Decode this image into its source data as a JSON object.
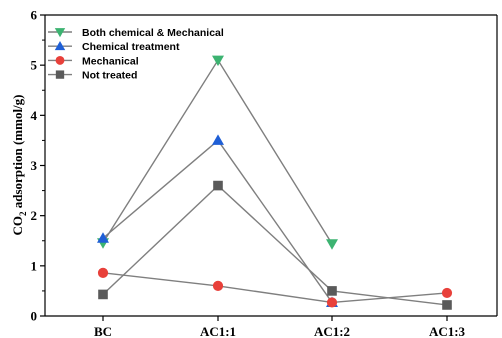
{
  "chart_data": {
    "type": "line",
    "categories": [
      "BC",
      "AC1:1",
      "AC1:2",
      "AC1:3"
    ],
    "ylabel": {
      "prefix": "CO",
      "sub": "2",
      "suffix": " adsorption (mmol/g)"
    },
    "xlabel": "",
    "title": "",
    "ylim": [
      0,
      6
    ],
    "yticks": [
      0,
      1,
      2,
      3,
      4,
      5,
      6
    ],
    "grid": false,
    "legend_position": "top-left",
    "series": [
      {
        "name": "Both chemical & Mechanical",
        "marker": "triangle-down",
        "color": "#3cb371",
        "line_color": "#7f7f7f",
        "values": [
          1.46,
          5.1,
          1.44,
          null
        ]
      },
      {
        "name": "Chemical treatment",
        "marker": "triangle-up",
        "color": "#1f5fd6",
        "line_color": "#7f7f7f",
        "values": [
          1.55,
          3.5,
          0.27,
          null
        ]
      },
      {
        "name": "Mechanical",
        "marker": "circle",
        "color": "#e8403a",
        "line_color": "#7f7f7f",
        "values": [
          0.86,
          0.6,
          0.27,
          0.46
        ]
      },
      {
        "name": "Not treated",
        "marker": "square",
        "color": "#5a5a5a",
        "line_color": "#7f7f7f",
        "values": [
          0.43,
          2.6,
          0.5,
          0.22
        ]
      }
    ]
  }
}
